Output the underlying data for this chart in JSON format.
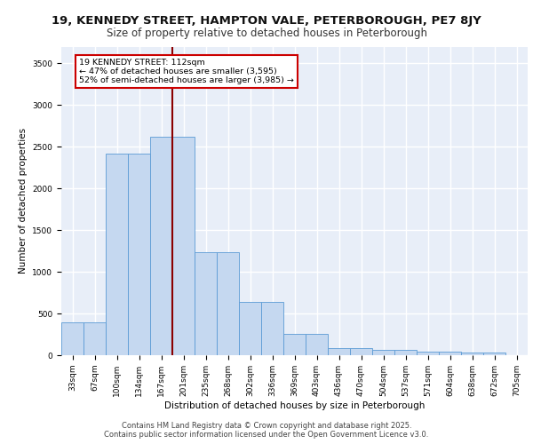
{
  "title": "19, KENNEDY STREET, HAMPTON VALE, PETERBOROUGH, PE7 8JY",
  "subtitle": "Size of property relative to detached houses in Peterborough",
  "xlabel": "Distribution of detached houses by size in Peterborough",
  "ylabel": "Number of detached properties",
  "categories": [
    "33sqm",
    "67sqm",
    "100sqm",
    "134sqm",
    "167sqm",
    "201sqm",
    "235sqm",
    "268sqm",
    "302sqm",
    "336sqm",
    "369sqm",
    "403sqm",
    "436sqm",
    "470sqm",
    "504sqm",
    "537sqm",
    "571sqm",
    "604sqm",
    "638sqm",
    "672sqm",
    "705sqm"
  ],
  "bar_values": [
    390,
    390,
    2420,
    2420,
    2620,
    2620,
    1230,
    1230,
    640,
    640,
    260,
    260,
    90,
    90,
    60,
    60,
    45,
    45,
    35,
    35,
    0
  ],
  "bar_color": "#c5d8f0",
  "bar_edgecolor": "#5b9bd5",
  "background_color": "#e8eef8",
  "grid_color": "#ffffff",
  "vline_color": "#8b0000",
  "vline_x": 4.5,
  "annotation_line1": "19 KENNEDY STREET: 112sqm",
  "annotation_line2": "← 47% of detached houses are smaller (3,595)",
  "annotation_line3": "52% of semi-detached houses are larger (3,985) →",
  "annotation_box_edgecolor": "#cc0000",
  "ylim": [
    0,
    3700
  ],
  "yticks": [
    0,
    500,
    1000,
    1500,
    2000,
    2500,
    3000,
    3500
  ],
  "footer_line1": "Contains HM Land Registry data © Crown copyright and database right 2025.",
  "footer_line2": "Contains public sector information licensed under the Open Government Licence v3.0.",
  "title_fontsize": 9.5,
  "subtitle_fontsize": 8.5,
  "axis_label_fontsize": 7.5,
  "tick_fontsize": 6.5,
  "footer_fontsize": 6.0
}
